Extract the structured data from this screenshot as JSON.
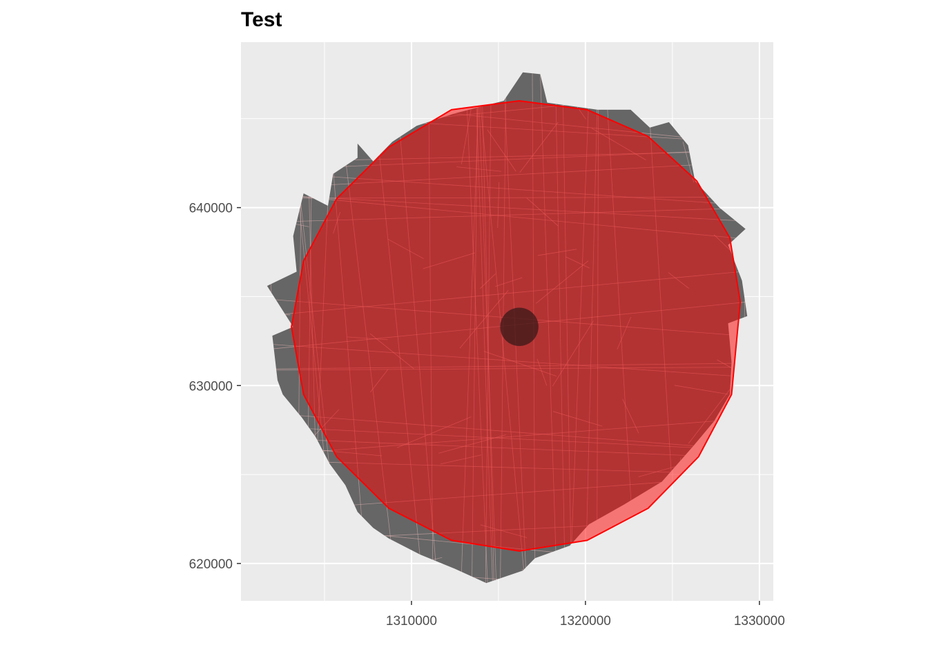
{
  "chart_data": {
    "type": "map",
    "title": "Test",
    "xlabel": "",
    "ylabel": "",
    "xlim": [
      1300200,
      1330800
    ],
    "ylim": [
      617900,
      649300
    ],
    "x_ticks": [
      1310000,
      1320000,
      1330000
    ],
    "x_tick_labels": [
      "1310000",
      "1320000",
      "1330000"
    ],
    "y_ticks": [
      620000,
      630000,
      640000
    ],
    "y_tick_labels": [
      "620000",
      "630000",
      "640000"
    ],
    "grid": true,
    "panel_background": "#ebebeb",
    "grid_color": "#ffffff",
    "layers": [
      {
        "name": "parcels",
        "fill": "#666666",
        "line": "#e8b6b6",
        "outline": [
          [
            1308900,
            643700
          ],
          [
            1310300,
            644600
          ],
          [
            1312500,
            645300
          ],
          [
            1315300,
            646000
          ],
          [
            1316400,
            647600
          ],
          [
            1317400,
            647500
          ],
          [
            1317800,
            645900
          ],
          [
            1320700,
            645500
          ],
          [
            1322600,
            645500
          ],
          [
            1323700,
            644500
          ],
          [
            1324800,
            644800
          ],
          [
            1325900,
            643500
          ],
          [
            1326300,
            641500
          ],
          [
            1327700,
            640000
          ],
          [
            1329200,
            638800
          ],
          [
            1328200,
            637900
          ],
          [
            1329000,
            635900
          ],
          [
            1329300,
            633900
          ],
          [
            1328200,
            633500
          ],
          [
            1328400,
            631300
          ],
          [
            1328300,
            629500
          ],
          [
            1327400,
            628000
          ],
          [
            1326200,
            626600
          ],
          [
            1324400,
            624600
          ],
          [
            1322200,
            623300
          ],
          [
            1320200,
            622200
          ],
          [
            1319100,
            621000
          ],
          [
            1317100,
            620300
          ],
          [
            1316400,
            619600
          ],
          [
            1314300,
            618900
          ],
          [
            1312500,
            619700
          ],
          [
            1310500,
            620500
          ],
          [
            1308700,
            621400
          ],
          [
            1307800,
            622000
          ],
          [
            1306900,
            622900
          ],
          [
            1306200,
            624400
          ],
          [
            1305300,
            625600
          ],
          [
            1304500,
            627100
          ],
          [
            1303700,
            628200
          ],
          [
            1302600,
            629500
          ],
          [
            1302300,
            630300
          ],
          [
            1302000,
            632800
          ],
          [
            1303200,
            633300
          ],
          [
            1301700,
            635600
          ],
          [
            1303400,
            636400
          ],
          [
            1303200,
            638400
          ],
          [
            1303800,
            640800
          ],
          [
            1305200,
            640100
          ],
          [
            1305500,
            641900
          ],
          [
            1306900,
            642800
          ],
          [
            1306900,
            643600
          ],
          [
            1307800,
            642600
          ]
        ]
      },
      {
        "name": "buffer",
        "fill": "#ff0000",
        "fill_opacity": 0.5,
        "stroke": "#ff0000",
        "outline": [
          [
            1316200,
            646000
          ],
          [
            1320100,
            645500
          ],
          [
            1323600,
            644000
          ],
          [
            1326400,
            641500
          ],
          [
            1328300,
            638300
          ],
          [
            1328900,
            634700
          ],
          [
            1328400,
            629500
          ],
          [
            1326500,
            626000
          ],
          [
            1323600,
            623100
          ],
          [
            1320100,
            621300
          ],
          [
            1316200,
            620700
          ],
          [
            1312300,
            621300
          ],
          [
            1308700,
            623100
          ],
          [
            1305700,
            626000
          ],
          [
            1303800,
            629500
          ],
          [
            1303100,
            633300
          ],
          [
            1303800,
            637000
          ],
          [
            1305700,
            640500
          ],
          [
            1308700,
            643400
          ],
          [
            1312300,
            645500
          ]
        ]
      },
      {
        "name": "center",
        "center": [
          1316200,
          633300
        ],
        "radius": 1100,
        "fill": "#3a1a1a",
        "fill_opacity": 0.75
      }
    ]
  }
}
